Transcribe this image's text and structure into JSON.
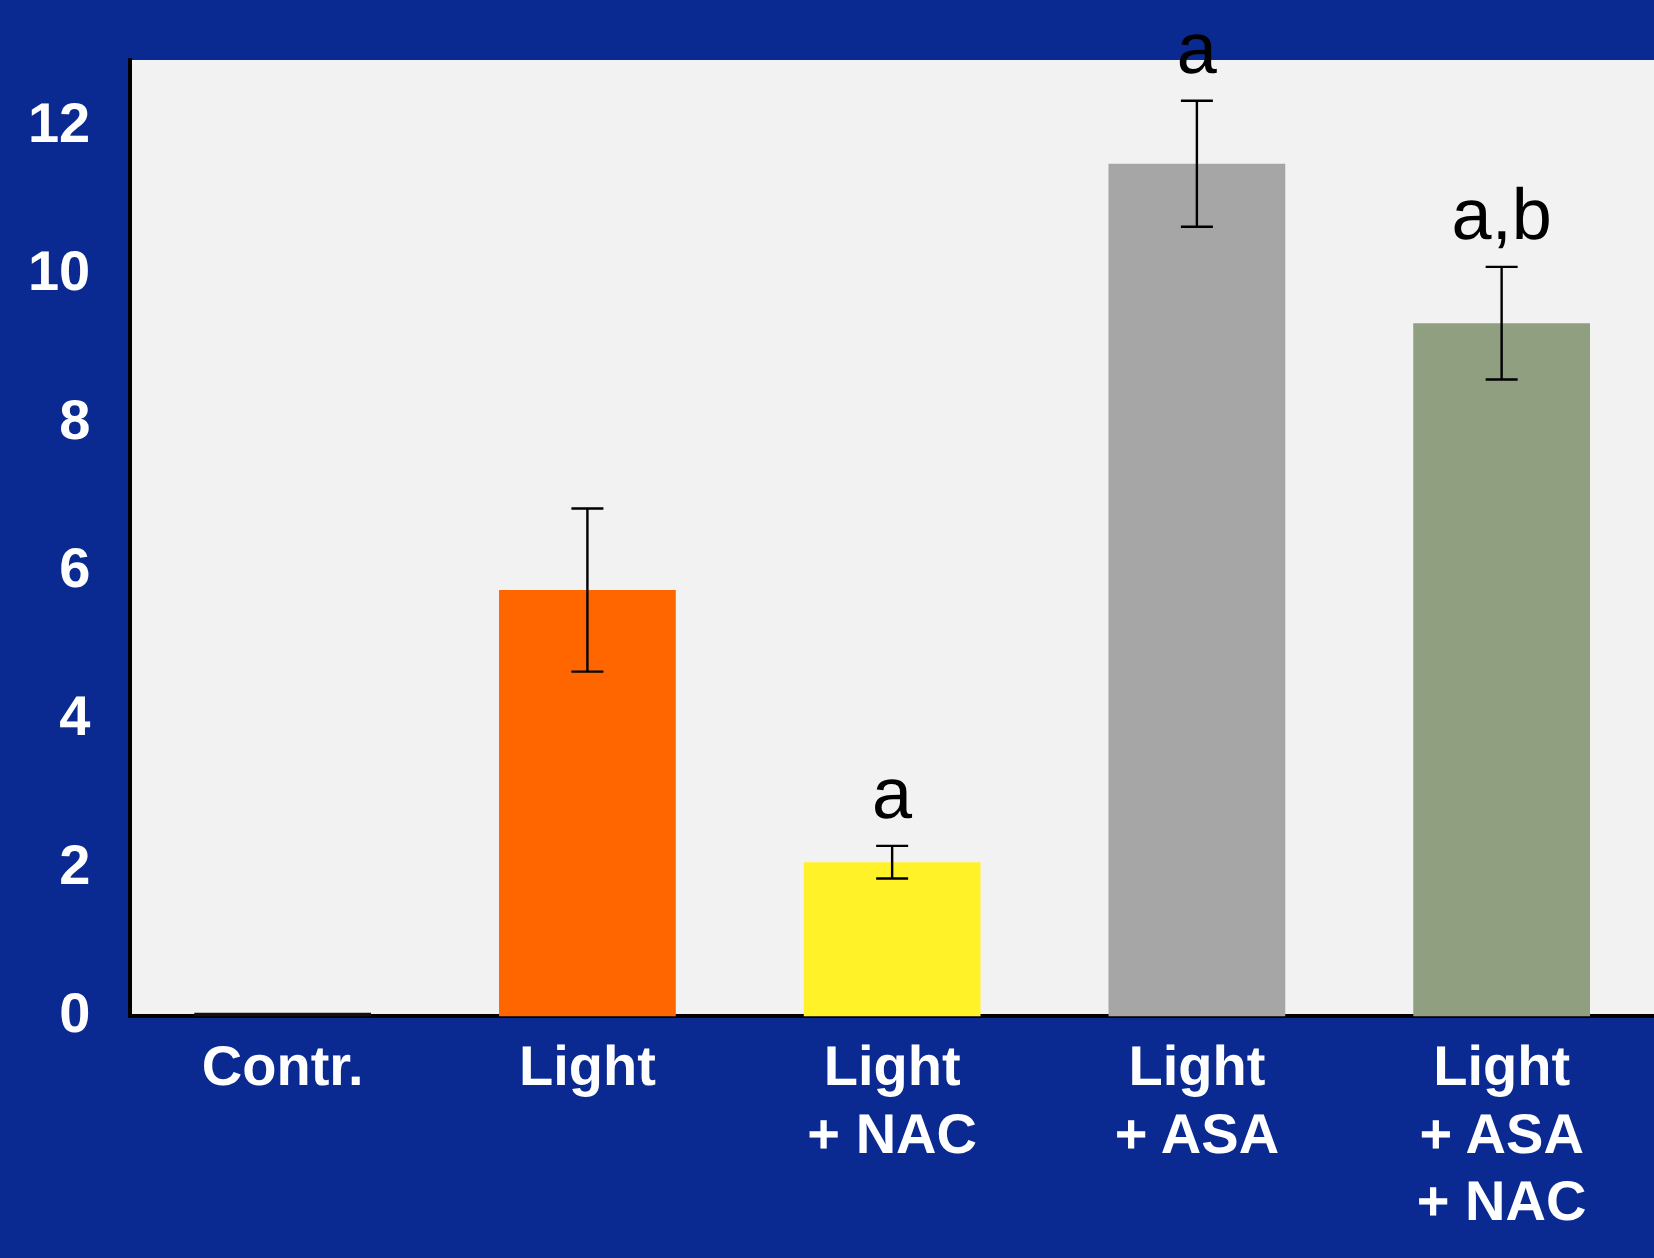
{
  "chart_data": {
    "type": "bar",
    "categories": [
      "Contr.",
      "Light",
      "Light\n+ NAC",
      "Light\n+ ASA",
      "Light\n+ ASA\n+ NAC"
    ],
    "values": [
      0.05,
      5.75,
      2.08,
      11.5,
      9.35
    ],
    "errors": [
      null,
      1.1,
      0.22,
      0.85,
      0.76
    ],
    "colors": [
      "#111111",
      "#ff6600",
      "#fff229",
      "#a6a6a6",
      "#8f9f7f"
    ],
    "ylim": [
      0,
      12.9
    ],
    "yticks": [
      0,
      2,
      4,
      6,
      8,
      10,
      12
    ],
    "grid": false,
    "annotations": [
      {
        "text": "a",
        "x": "Light\n+ NAC",
        "y": 2.3
      },
      {
        "text": "a",
        "x": "Light\n+ ASA",
        "y": 12.35
      },
      {
        "text": "a,b",
        "x": "Light\n+ ASA\n+ NAC",
        "y": 10.11
      }
    ]
  }
}
